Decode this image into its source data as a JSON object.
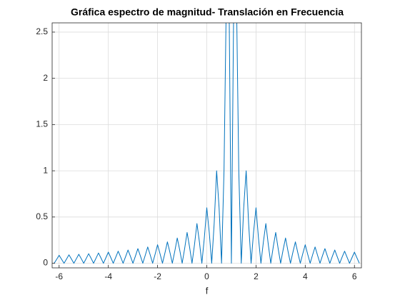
{
  "chart_data": {
    "type": "line",
    "title": "Gráfica espectro de magnitud- Translación en Frecuencia",
    "xlabel": "f",
    "xlim": [
      -6.2832,
      6.2832
    ],
    "ylim": [
      -0.05,
      2.6
    ],
    "xticks": [
      -6,
      -4,
      -2,
      0,
      2,
      4,
      6
    ],
    "yticks": [
      0,
      0.5,
      1,
      1.5,
      2,
      2.5
    ],
    "grid": true,
    "color": "#0072bd",
    "x": [
      -6.2,
      -6.1,
      -6,
      -5.9,
      -5.8,
      -5.7,
      -5.6,
      -5.5,
      -5.4,
      -5.3,
      -5.2,
      -5.1,
      -5,
      -4.9,
      -4.8,
      -4.7,
      -4.6,
      -4.5,
      -4.4,
      -4.3,
      -4.2,
      -4.1,
      -4,
      -3.9,
      -3.8,
      -3.7,
      -3.6,
      -3.5,
      -3.4,
      -3.3,
      -3.2,
      -3.1,
      -3,
      -2.9,
      -2.8,
      -2.7,
      -2.6,
      -2.5,
      -2.4,
      -2.3,
      -2.2,
      -2.1,
      -2,
      -1.9,
      -1.8,
      -1.7,
      -1.6,
      -1.5,
      -1.4,
      -1.3,
      -1.2,
      -1.1,
      -1,
      -0.9,
      -0.8,
      -0.7,
      -0.6,
      -0.5,
      -0.4,
      -0.3,
      -0.2,
      -0.1,
      0,
      0.1,
      0.2,
      0.3,
      0.4,
      0.5,
      0.6,
      0.7,
      0.8,
      0.9,
      1,
      1.1,
      1.2,
      1.3,
      1.4,
      1.5,
      1.6,
      1.7,
      1.8,
      1.9,
      2,
      2.1,
      2.2,
      2.3,
      2.4,
      2.5,
      2.6,
      2.7,
      2.8,
      2.9,
      3,
      3.1,
      3.2,
      3.3,
      3.4,
      3.5,
      3.6,
      3.7,
      3.8,
      3.9,
      4,
      4.1,
      4.2,
      4.3,
      4.4,
      4.5,
      4.6,
      4.7,
      4.8,
      4.9,
      5,
      5.1,
      5.2,
      5.3,
      5.4,
      5.5,
      5.6,
      5.7,
      5.8,
      5.9,
      6,
      6.1,
      6.2
    ],
    "values": [
      0,
      0.042,
      0.086,
      0.043,
      0,
      0.045,
      0.091,
      0.046,
      0,
      0.048,
      0.097,
      0.049,
      0,
      0.051,
      0.103,
      0.053,
      0,
      0.055,
      0.111,
      0.057,
      0,
      0.059,
      0.12,
      0.061,
      0,
      0.064,
      0.13,
      0.067,
      0,
      0.07,
      0.143,
      0.073,
      0,
      0.077,
      0.158,
      0.081,
      0,
      0.086,
      0.176,
      0.091,
      0,
      0.097,
      0.2,
      0.103,
      0,
      0.111,
      0.231,
      0.12,
      0,
      0.13,
      0.273,
      0.143,
      0,
      0.158,
      0.333,
      0.176,
      0,
      0.2,
      0.429,
      0.231,
      0,
      0.273,
      0.6,
      0.333,
      0,
      0.429,
      1,
      0.6,
      0,
      1,
      3,
      3,
      0,
      3,
      3,
      1,
      0,
      0.6,
      1,
      0.429,
      0,
      0.333,
      0.6,
      0.273,
      0,
      0.231,
      0.429,
      0.2,
      0,
      0.176,
      0.333,
      0.158,
      0,
      0.143,
      0.273,
      0.13,
      0,
      0.12,
      0.231,
      0.111,
      0,
      0.103,
      0.2,
      0.097,
      0,
      0.091,
      0.176,
      0.086,
      0,
      0.081,
      0.158,
      0.077,
      0,
      0.073,
      0.143,
      0.07,
      0,
      0.067,
      0.13,
      0.064,
      0,
      0.061,
      0.12,
      0.059,
      0
    ]
  }
}
